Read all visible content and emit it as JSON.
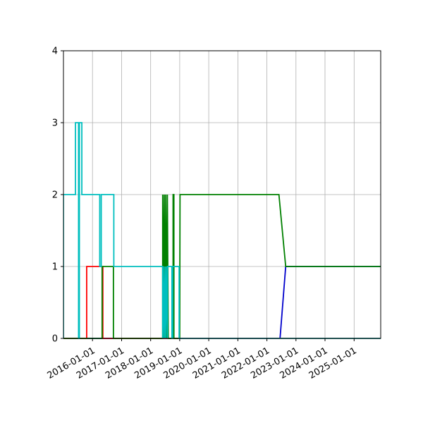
{
  "chart_data": {
    "type": "line",
    "title": "",
    "xlabel": "",
    "ylabel": "",
    "x_axis": {
      "type": "date",
      "min": "2015-01-01",
      "max": "2025-12-01",
      "ticks": [
        "2016-01-01",
        "2017-01-01",
        "2018-01-01",
        "2019-01-01",
        "2020-01-01",
        "2021-01-01",
        "2022-01-01",
        "2023-01-01",
        "2024-01-01",
        "2025-01-01"
      ]
    },
    "y_axis": {
      "min": 0,
      "max": 4,
      "ticks": [
        "0",
        "1",
        "2",
        "3",
        "4"
      ]
    },
    "grid": true,
    "legend": "none",
    "series": [
      {
        "color": "#0000cc",
        "points": [
          [
            "2015-01-01",
            0
          ],
          [
            "2022-06-15",
            0
          ],
          [
            "2022-08-25",
            1
          ],
          [
            "2025-12-01",
            1
          ]
        ]
      },
      {
        "color": "#ff0000",
        "points": [
          [
            "2015-01-01",
            0
          ],
          [
            "2015-10-20",
            0
          ],
          [
            "2015-10-20",
            1
          ],
          [
            "2016-05-10",
            1
          ],
          [
            "2016-05-10",
            0
          ],
          [
            "2025-12-01",
            0
          ]
        ]
      },
      {
        "color": "#008000",
        "points": [
          [
            "2015-01-01",
            0
          ],
          [
            "2016-05-01",
            0
          ],
          [
            "2016-05-01",
            1
          ],
          [
            "2016-09-20",
            1
          ],
          [
            "2016-09-20",
            0
          ],
          [
            "2018-06-01",
            0
          ],
          [
            "2018-06-01",
            2
          ],
          [
            "2018-06-10",
            0
          ],
          [
            "2018-06-20",
            2
          ],
          [
            "2018-06-30",
            0
          ],
          [
            "2018-07-10",
            2
          ],
          [
            "2018-07-20",
            0
          ],
          [
            "2018-07-30",
            2
          ],
          [
            "2018-08-10",
            0
          ],
          [
            "2018-10-10",
            0
          ],
          [
            "2018-10-10",
            2
          ],
          [
            "2018-10-20",
            2
          ],
          [
            "2018-10-20",
            0
          ],
          [
            "2019-01-01",
            0
          ],
          [
            "2019-01-05",
            2
          ],
          [
            "2022-06-01",
            2
          ],
          [
            "2022-08-25",
            1
          ],
          [
            "2025-12-01",
            1
          ]
        ]
      },
      {
        "color": "#00bfbf",
        "points": [
          [
            "2015-01-01",
            0
          ],
          [
            "2015-01-01",
            2
          ],
          [
            "2015-06-01",
            2
          ],
          [
            "2015-06-01",
            3
          ],
          [
            "2015-07-10",
            3
          ],
          [
            "2015-07-10",
            0
          ],
          [
            "2015-07-20",
            0
          ],
          [
            "2015-07-20",
            3
          ],
          [
            "2015-08-20",
            3
          ],
          [
            "2015-08-20",
            2
          ],
          [
            "2016-04-01",
            2
          ],
          [
            "2016-04-01",
            1
          ],
          [
            "2016-04-20",
            1
          ],
          [
            "2016-04-20",
            2
          ],
          [
            "2016-09-25",
            2
          ],
          [
            "2016-09-25",
            1
          ],
          [
            "2018-06-01",
            1
          ],
          [
            "2018-06-01",
            0
          ],
          [
            "2018-06-10",
            1
          ],
          [
            "2018-06-20",
            0
          ],
          [
            "2018-07-01",
            1
          ],
          [
            "2018-07-10",
            0
          ],
          [
            "2018-07-20",
            1
          ],
          [
            "2018-08-01",
            0
          ],
          [
            "2018-08-01",
            1
          ],
          [
            "2018-09-25",
            1
          ],
          [
            "2018-09-25",
            0
          ],
          [
            "2018-10-05",
            0
          ],
          [
            "2018-10-05",
            1
          ],
          [
            "2018-12-25",
            1
          ],
          [
            "2018-12-25",
            0
          ],
          [
            "2025-12-01",
            0
          ]
        ]
      }
    ]
  }
}
